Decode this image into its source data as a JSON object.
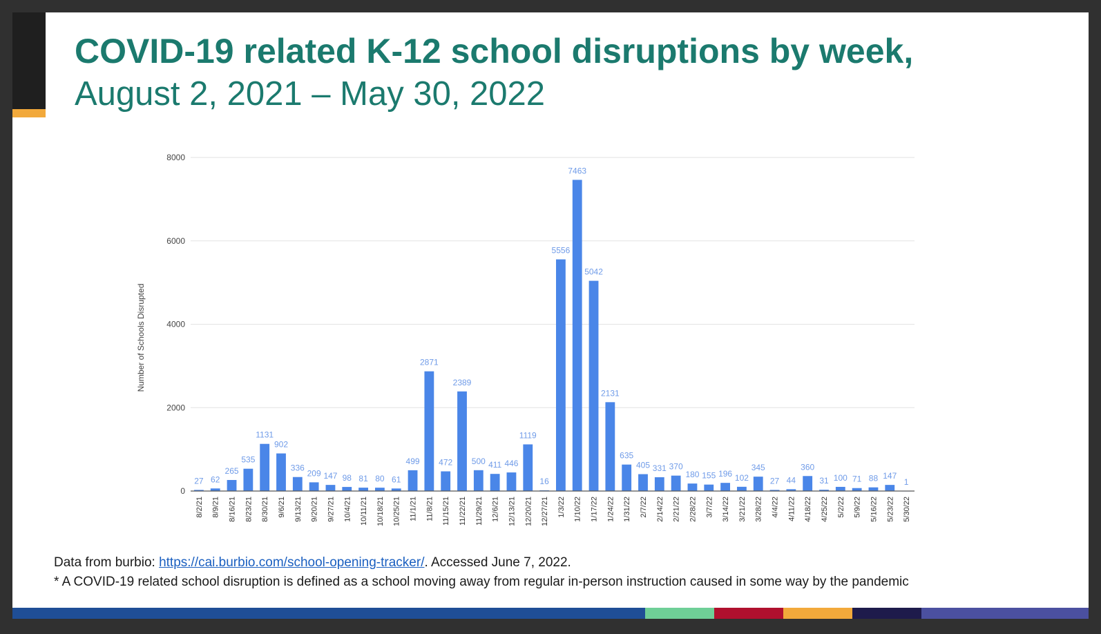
{
  "slide": {
    "title": "COVID-19 related K-12 school disruptions by week,",
    "subtitle": "August 2, 2021 – May 30, 2022",
    "footer": {
      "source_prefix": "Data from burbio: ",
      "source_link": "https://cai.burbio.com/school-opening-tracker/",
      "source_suffix": ". Accessed June 7, 2022.",
      "note": "* A COVID-19 related school disruption is defined as a school moving away from regular in-person instruction caused in some way by the pandemic"
    },
    "colors": {
      "title": "#1b7a6e",
      "bar": "#4a86e8",
      "label": "#6f9be8",
      "accent": "#f2a93b",
      "stripe": [
        "#1f4e96",
        "#6fcf97",
        "#b0102e",
        "#f2a93b",
        "#1e1b4b",
        "#4b50a0"
      ]
    }
  },
  "chart_data": {
    "type": "bar",
    "title": "",
    "xlabel": "",
    "ylabel": "Number of Schools Disrupted",
    "ylim": [
      0,
      8000
    ],
    "yticks": [
      0,
      2000,
      4000,
      6000,
      8000
    ],
    "grid": true,
    "categories": [
      "8/2/21",
      "8/9/21",
      "8/16/21",
      "8/23/21",
      "8/30/21",
      "9/6/21",
      "9/13/21",
      "9/20/21",
      "9/27/21",
      "10/4/21",
      "10/11/21",
      "10/18/21",
      "10/25/21",
      "11/1/21",
      "11/8/21",
      "11/15/21",
      "11/22/21",
      "11/29/21",
      "12/6/21",
      "12/13/21",
      "12/20/21",
      "12/27/21",
      "1/3/22",
      "1/10/22",
      "1/17/22",
      "1/24/22",
      "1/31/22",
      "2/7/22",
      "2/14/22",
      "2/21/22",
      "2/28/22",
      "3/7/22",
      "3/14/22",
      "3/21/22",
      "3/28/22",
      "4/4/22",
      "4/11/22",
      "4/18/22",
      "4/25/22",
      "5/2/22",
      "5/9/22",
      "5/16/22",
      "5/23/22",
      "5/30/22"
    ],
    "values": [
      27,
      62,
      265,
      535,
      1131,
      902,
      336,
      209,
      147,
      98,
      81,
      80,
      61,
      499,
      2871,
      472,
      2389,
      500,
      411,
      446,
      1119,
      16,
      5556,
      7463,
      5042,
      2131,
      635,
      405,
      331,
      370,
      180,
      155,
      196,
      102,
      345,
      27,
      44,
      360,
      31,
      100,
      71,
      88,
      147,
      1
    ]
  }
}
